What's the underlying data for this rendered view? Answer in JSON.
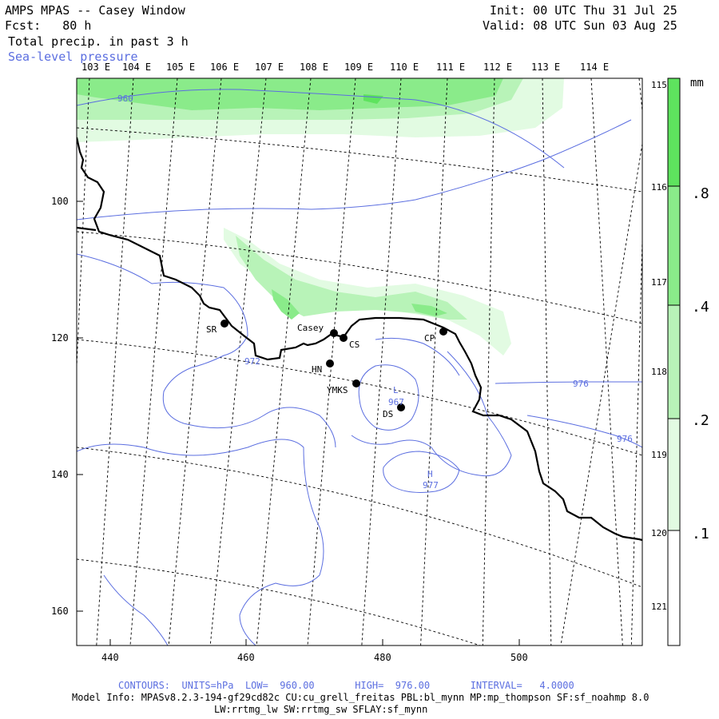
{
  "header": {
    "title": "AMPS MPAS -- Casey Window",
    "forecast": "Fcst:   80 h",
    "field": "Total precip. in past 3 h",
    "overlay": "Sea-level pressure",
    "init": "Init: 00 UTC Thu 31 Jul 25",
    "valid": "Valid: 08 UTC Sun 03 Aug 25"
  },
  "axes": {
    "x_ticks": [
      "440",
      "460",
      "480",
      "500"
    ],
    "y_ticks": [
      "100",
      "120",
      "140",
      "160"
    ],
    "lon_top": [
      "103 E",
      "104 E",
      "105 E",
      "106 E",
      "107 E",
      "108 E",
      "109 E",
      "110 E",
      "111 E",
      "112 E",
      "113 E",
      "114 E"
    ],
    "lon_right": [
      "115 E",
      "116 E",
      "117 E",
      "118 E",
      "119 E",
      "120 E",
      "121 E"
    ]
  },
  "colorbar": {
    "unit": "mm",
    "labels": [
      ".8",
      ".4",
      ".2",
      ".1"
    ],
    "colors": [
      "#5ee35e",
      "#8aeb8a",
      "#b8f3b8",
      "#e2fbe2",
      "#ffffff"
    ]
  },
  "stations": [
    {
      "label": "SR"
    },
    {
      "label": "Casey"
    },
    {
      "label": "CS"
    },
    {
      "label": "CP"
    },
    {
      "label": "HN"
    },
    {
      "label": "YMKS"
    },
    {
      "label": "DS"
    }
  ],
  "contour_labels": [
    "960",
    "972",
    "976",
    "976",
    "967",
    "L",
    "H",
    "977"
  ],
  "footer": {
    "contours": "CONTOURS:  UNITS=hPa  LOW=  960.00       HIGH=  976.00       INTERVAL=   4.0000",
    "model_info": "Model Info: MPASv8.2.3-194-gf29cd82c CU:cu_grell_freitas PBL:bl_mynn MP:mp_thompson SF:sf_noahmp 8.0",
    "model_info2": "LW:rrtmg_lw SW:rrtmg_sw SFLAY:sf_mynn"
  },
  "colors": {
    "contour": "#5b6ee0",
    "coast": "#000000",
    "grid": "#000000"
  }
}
